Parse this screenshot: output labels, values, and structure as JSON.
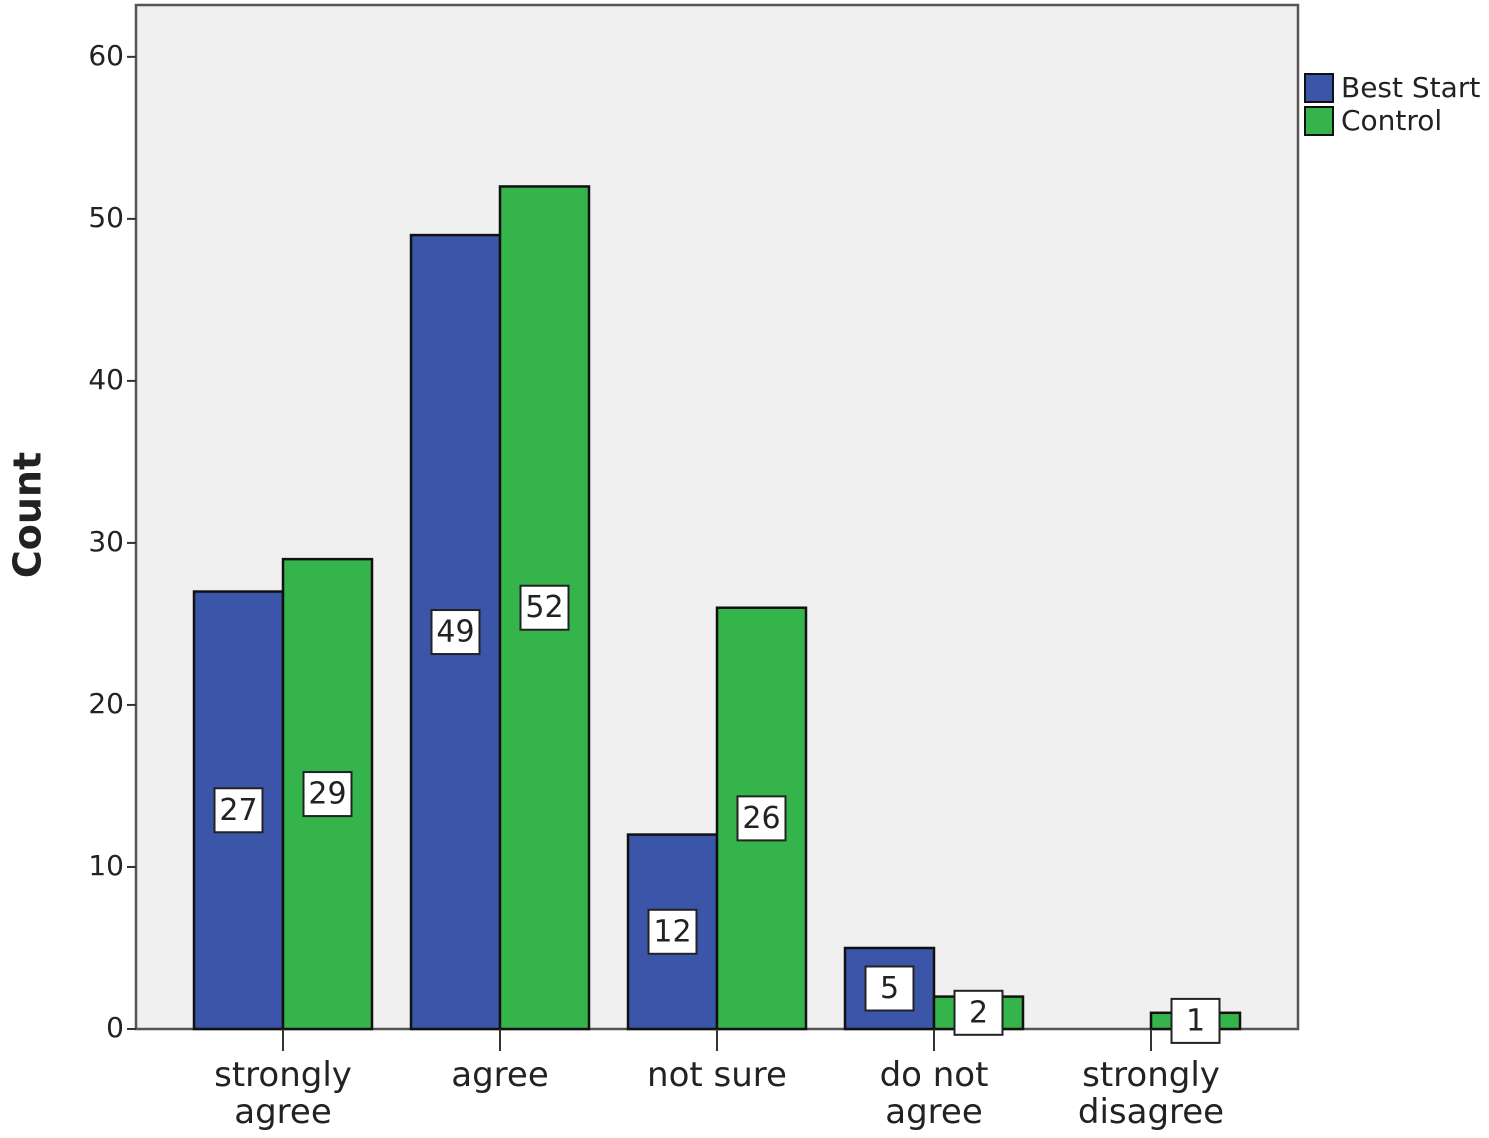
{
  "chart_data": {
    "type": "bar",
    "y_label": "Count",
    "categories": [
      "strongly\nagree",
      "agree",
      "not sure",
      "do not\nagree",
      "strongly\ndisagree"
    ],
    "series": [
      {
        "name": "Best Start",
        "color": "#3b55a9",
        "values": [
          27,
          49,
          12,
          5,
          null
        ]
      },
      {
        "name": "Control",
        "color": "#34b44a",
        "values": [
          29,
          52,
          26,
          2,
          1
        ]
      }
    ],
    "ylim": [
      0,
      63.2
    ],
    "yticks": [
      0,
      10,
      20,
      30,
      40,
      50,
      60
    ],
    "legend": "top-right outside"
  }
}
